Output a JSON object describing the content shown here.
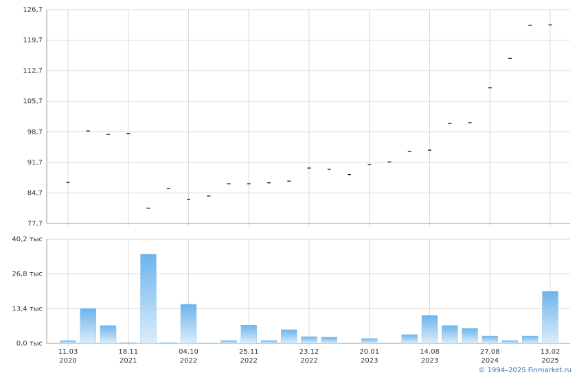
{
  "chart_data": [
    {
      "type": "dash",
      "color": "#000000",
      "values": [
        87.1,
        98.9,
        98.1,
        98.3,
        81.2,
        85.7,
        83.2,
        84.0,
        86.8,
        86.8,
        87.0,
        87.4,
        90.4,
        90.1,
        88.9,
        91.2,
        91.8,
        94.2,
        94.5,
        100.6,
        100.8,
        108.8,
        115.5,
        123.1,
        123.2
      ],
      "ylim": [
        77.7,
        126.7
      ],
      "yticks": [
        {
          "value": 77.7,
          "label": "77,7"
        },
        {
          "value": 84.7,
          "label": "84,7"
        },
        {
          "value": 91.7,
          "label": "91,7"
        },
        {
          "value": 98.7,
          "label": "98,7"
        },
        {
          "value": 105.7,
          "label": "105,7"
        },
        {
          "value": 112.7,
          "label": "112,7"
        },
        {
          "value": 119.7,
          "label": "119,7"
        },
        {
          "value": 126.7,
          "label": "126,7"
        }
      ],
      "grid": true
    },
    {
      "type": "bar",
      "color": "#6cb4ec",
      "categories": [
        "11.03\n2020",
        null,
        null,
        "18.11\n2021",
        null,
        null,
        "04.10\n2022",
        null,
        null,
        "25.11\n2022",
        null,
        null,
        "23.12\n2022",
        null,
        null,
        "20.01\n2023",
        null,
        null,
        "14.08\n2023",
        null,
        null,
        "27.08\n2024",
        null,
        null,
        "13.02\n2025"
      ],
      "values": [
        1.1,
        13.5,
        6.9,
        0.3,
        34.4,
        0.3,
        15.1,
        0.2,
        1.1,
        7.1,
        1.1,
        5.3,
        2.6,
        2.4,
        0.2,
        1.9,
        0.2,
        3.4,
        10.8,
        6.9,
        5.8,
        2.9,
        1.1,
        2.9,
        20.1
      ],
      "ylim": [
        0,
        40.2
      ],
      "yticks": [
        {
          "value": 0,
          "label": "0,0 тыс"
        },
        {
          "value": 13.4,
          "label": "13,4 тыс"
        },
        {
          "value": 26.8,
          "label": "26,8 тыс"
        },
        {
          "value": 40.2,
          "label": "40,2 тыс"
        }
      ],
      "grid": true
    }
  ],
  "footer": "© 1994–2025 Finmarket.ru"
}
